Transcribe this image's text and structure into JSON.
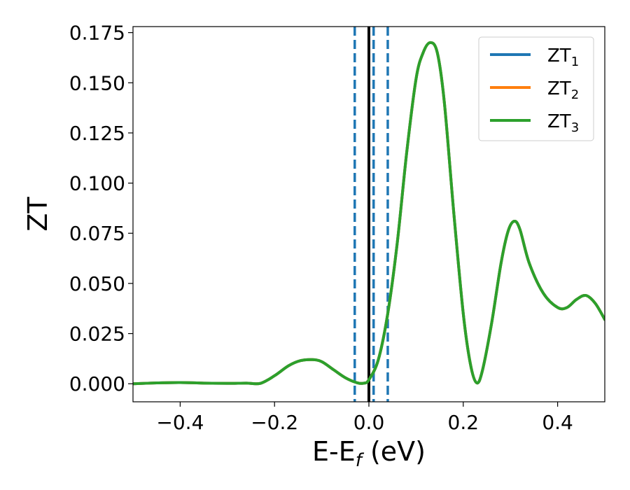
{
  "chart_data": {
    "type": "line",
    "title": "",
    "xlabel": {
      "main": "E-E",
      "sub": "f",
      "unit": " (eV)"
    },
    "ylabel": "ZT",
    "xlim": [
      -0.5,
      0.5
    ],
    "ylim": [
      -0.009,
      0.178
    ],
    "x_ticks": [
      -0.4,
      -0.2,
      0.0,
      0.2,
      0.4
    ],
    "x_tick_labels": [
      "−0.4",
      "−0.2",
      "0.0",
      "0.2",
      "0.4"
    ],
    "y_ticks": [
      0.0,
      0.025,
      0.05,
      0.075,
      0.1,
      0.125,
      0.15,
      0.175
    ],
    "y_tick_labels": [
      "0.000",
      "0.025",
      "0.050",
      "0.075",
      "0.100",
      "0.125",
      "0.150",
      "0.175"
    ],
    "grid": false,
    "legend_position": "top-right",
    "x": [
      -0.5,
      -0.45,
      -0.4,
      -0.35,
      -0.3,
      -0.26,
      -0.23,
      -0.2,
      -0.17,
      -0.145,
      -0.12,
      -0.1,
      -0.075,
      -0.05,
      -0.025,
      -0.01,
      0.0,
      0.02,
      0.04,
      0.06,
      0.08,
      0.1,
      0.115,
      0.13,
      0.145,
      0.16,
      0.18,
      0.2,
      0.215,
      0.228,
      0.24,
      0.26,
      0.28,
      0.295,
      0.308,
      0.32,
      0.34,
      0.37,
      0.4,
      0.42,
      0.44,
      0.46,
      0.48,
      0.5
    ],
    "series": [
      {
        "name": "ZT1",
        "label_main": "ZT",
        "label_sub": "1",
        "color": "#1f77b4",
        "y": [
          0.0,
          0.0004,
          0.0006,
          0.0003,
          0.0002,
          0.0003,
          0.0002,
          0.004,
          0.009,
          0.0115,
          0.012,
          0.011,
          0.007,
          0.003,
          0.0005,
          0.0003,
          0.002,
          0.012,
          0.035,
          0.07,
          0.115,
          0.152,
          0.165,
          0.17,
          0.165,
          0.14,
          0.085,
          0.035,
          0.01,
          0.0005,
          0.006,
          0.03,
          0.06,
          0.076,
          0.081,
          0.077,
          0.06,
          0.045,
          0.038,
          0.038,
          0.042,
          0.044,
          0.04,
          0.032
        ]
      },
      {
        "name": "ZT2",
        "label_main": "ZT",
        "label_sub": "2",
        "color": "#ff7f0e",
        "y": [
          0.0,
          0.0004,
          0.0006,
          0.0003,
          0.0002,
          0.0003,
          0.0002,
          0.004,
          0.009,
          0.0115,
          0.012,
          0.011,
          0.007,
          0.003,
          0.0005,
          0.0003,
          0.002,
          0.012,
          0.035,
          0.07,
          0.115,
          0.152,
          0.165,
          0.17,
          0.165,
          0.14,
          0.085,
          0.035,
          0.01,
          0.0005,
          0.006,
          0.03,
          0.06,
          0.076,
          0.081,
          0.077,
          0.06,
          0.045,
          0.038,
          0.038,
          0.042,
          0.044,
          0.04,
          0.032
        ]
      },
      {
        "name": "ZT3",
        "label_main": "ZT",
        "label_sub": "3",
        "color": "#2ca02c",
        "y": [
          0.0,
          0.0004,
          0.0006,
          0.0003,
          0.0002,
          0.0003,
          0.0002,
          0.004,
          0.009,
          0.0115,
          0.012,
          0.011,
          0.007,
          0.003,
          0.0005,
          0.0003,
          0.002,
          0.012,
          0.035,
          0.07,
          0.115,
          0.152,
          0.165,
          0.17,
          0.165,
          0.14,
          0.085,
          0.035,
          0.01,
          0.0005,
          0.006,
          0.03,
          0.06,
          0.076,
          0.081,
          0.077,
          0.06,
          0.045,
          0.038,
          0.038,
          0.042,
          0.044,
          0.04,
          0.032
        ]
      }
    ],
    "vertical_lines": [
      {
        "x": -0.03,
        "style": "dashed",
        "color": "#1f77b4"
      },
      {
        "x": 0.01,
        "style": "dashed",
        "color": "#1f77b4"
      },
      {
        "x": 0.04,
        "style": "dashed",
        "color": "#1f77b4"
      },
      {
        "x": 0.0,
        "style": "solid",
        "color": "#000000"
      }
    ]
  }
}
